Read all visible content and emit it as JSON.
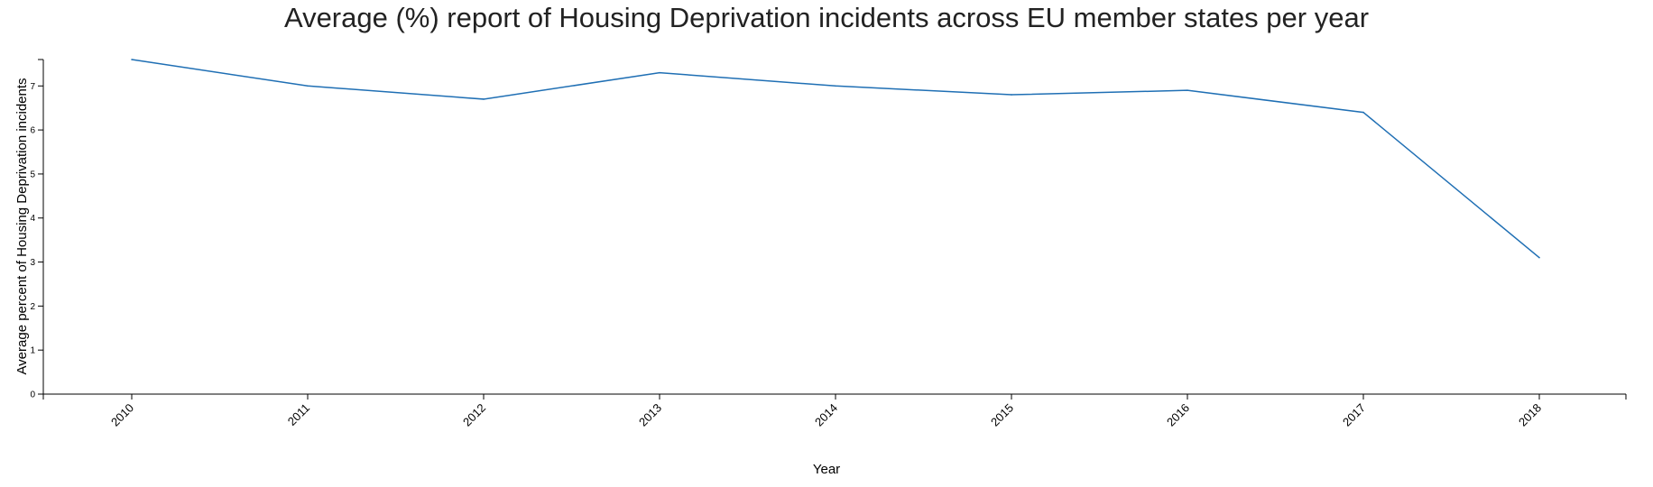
{
  "chart_data": {
    "type": "line",
    "title": "Average (%) report of Housing Deprivation incidents across EU member states per year",
    "xlabel": "Year",
    "ylabel": "Average percent of Housing Deprivation incidents",
    "x": [
      "2010",
      "2011",
      "2012",
      "2013",
      "2014",
      "2015",
      "2016",
      "2017",
      "2018"
    ],
    "series": [
      {
        "values": [
          7.6,
          7.0,
          6.7,
          7.3,
          7.0,
          6.8,
          6.9,
          6.4,
          3.1
        ]
      }
    ],
    "y_ticks": [
      "0",
      "1",
      "2",
      "3",
      "4",
      "5",
      "6",
      "7"
    ],
    "ylim": [
      0,
      7.6
    ],
    "grid": false,
    "legend": "none",
    "line_color": "#1f6fb4"
  }
}
